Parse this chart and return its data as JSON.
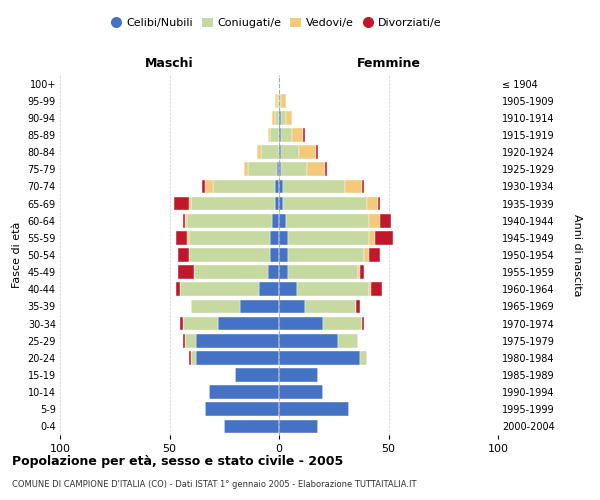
{
  "age_groups": [
    "0-4",
    "5-9",
    "10-14",
    "15-19",
    "20-24",
    "25-29",
    "30-34",
    "35-39",
    "40-44",
    "45-49",
    "50-54",
    "55-59",
    "60-64",
    "65-69",
    "70-74",
    "75-79",
    "80-84",
    "85-89",
    "90-94",
    "95-99",
    "100+"
  ],
  "birth_years": [
    "2000-2004",
    "1995-1999",
    "1990-1994",
    "1985-1989",
    "1980-1984",
    "1975-1979",
    "1970-1974",
    "1965-1969",
    "1960-1964",
    "1955-1959",
    "1950-1954",
    "1945-1949",
    "1940-1944",
    "1935-1939",
    "1930-1934",
    "1925-1929",
    "1920-1924",
    "1915-1919",
    "1910-1914",
    "1905-1909",
    "≤ 1904"
  ],
  "colors": {
    "celibi": "#4472C4",
    "coniugati": "#C5D9A0",
    "vedovi": "#F5C97A",
    "divorziati": "#C0182A"
  },
  "maschi": {
    "celibi": [
      25,
      34,
      32,
      20,
      38,
      38,
      28,
      18,
      9,
      5,
      4,
      4,
      3,
      2,
      2,
      1,
      0,
      0,
      0,
      0,
      0
    ],
    "coniugati": [
      0,
      0,
      0,
      0,
      2,
      5,
      16,
      22,
      36,
      34,
      37,
      37,
      39,
      38,
      28,
      13,
      8,
      4,
      2,
      1,
      0
    ],
    "vedovi": [
      0,
      0,
      0,
      0,
      0,
      0,
      0,
      0,
      0,
      0,
      0,
      1,
      1,
      1,
      4,
      2,
      2,
      1,
      1,
      1,
      0
    ],
    "divorziati": [
      0,
      0,
      0,
      0,
      1,
      1,
      1,
      0,
      2,
      7,
      5,
      5,
      1,
      7,
      1,
      0,
      0,
      0,
      0,
      0,
      0
    ]
  },
  "femmine": {
    "celibi": [
      18,
      32,
      20,
      18,
      37,
      27,
      20,
      12,
      8,
      4,
      4,
      4,
      3,
      2,
      2,
      1,
      1,
      1,
      1,
      0,
      0
    ],
    "coniugati": [
      0,
      0,
      0,
      0,
      3,
      9,
      18,
      23,
      33,
      32,
      35,
      37,
      38,
      38,
      28,
      12,
      8,
      5,
      2,
      1,
      0
    ],
    "vedovi": [
      0,
      0,
      0,
      0,
      0,
      0,
      0,
      0,
      1,
      1,
      2,
      3,
      5,
      5,
      8,
      8,
      8,
      5,
      3,
      2,
      0
    ],
    "divorziati": [
      0,
      0,
      0,
      0,
      0,
      0,
      1,
      2,
      5,
      2,
      5,
      8,
      5,
      1,
      1,
      1,
      1,
      1,
      0,
      0,
      0
    ]
  },
  "xlim": 100,
  "xlabel_left": "Maschi",
  "xlabel_right": "Femmine",
  "ylabel": "Fasce di età",
  "ylabel_right": "Anni di nascita",
  "title": "Popolazione per età, sesso e stato civile - 2005",
  "subtitle": "COMUNE DI CAMPIONE D'ITALIA (CO) - Dati ISTAT 1° gennaio 2005 - Elaborazione TUTTAITALIA.IT",
  "legend_labels": [
    "Celibi/Nubili",
    "Coniugati/e",
    "Vedovi/e",
    "Divorziati/e"
  ],
  "bg_color": "#FFFFFF",
  "grid_color": "#CCCCCC",
  "bar_height": 0.8
}
